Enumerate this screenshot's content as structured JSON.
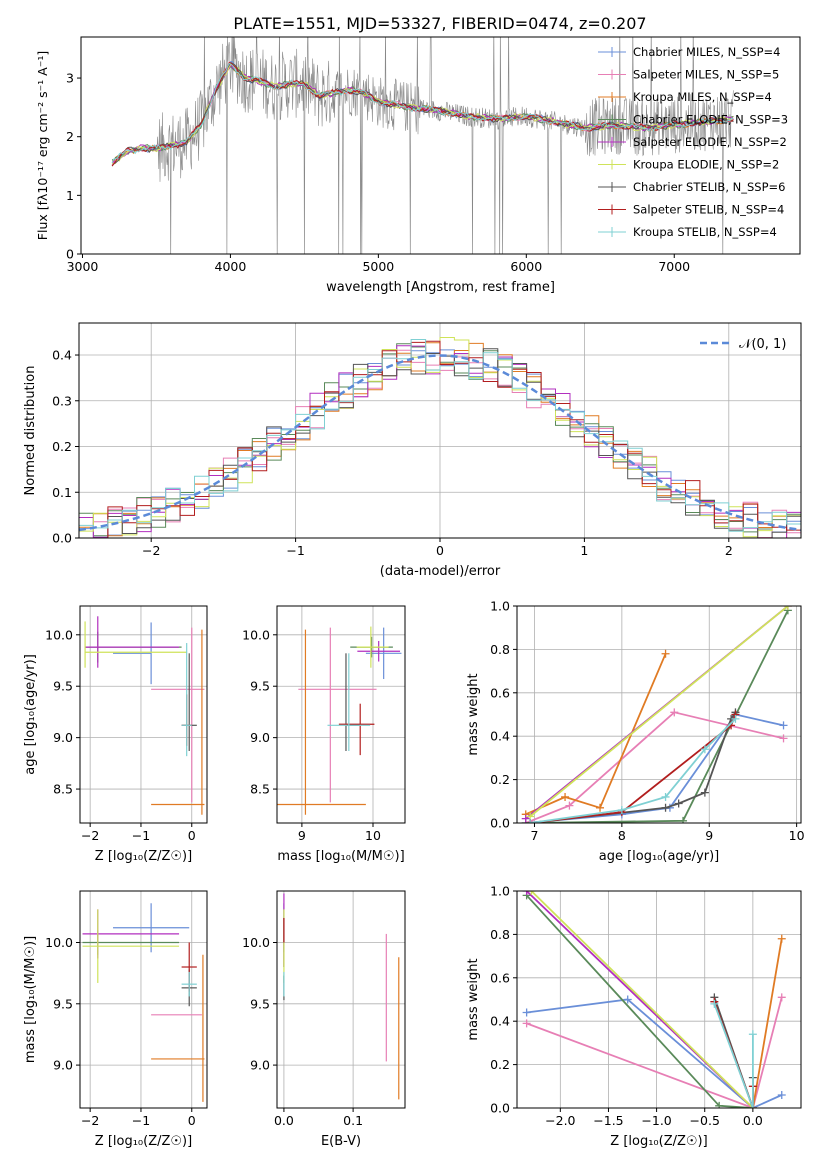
{
  "figure": {
    "title": "PLATE=1551, MJD=53327, FIBERID=0474, z=0.207"
  },
  "colors": {
    "cm": "#6a8fd8",
    "sm": "#e77fb5",
    "km": "#e07b24",
    "ce": "#5a8a5a",
    "se": "#b22fbf",
    "ke": "#cfe35a",
    "cs": "#555555",
    "ss": "#b21e1e",
    "ks": "#7fd0d3",
    "obs": "#888888",
    "norm": "#5b8ad8"
  },
  "chart_data": [
    {
      "id": "spectrum",
      "type": "line",
      "title": "PLATE=1551, MJD=53327, FIBERID=0474, z=0.207",
      "xlabel": "wavelength [Angstrom, rest frame]",
      "ylabel": "Flux [fλ10⁻¹⁷ erg cm⁻² s⁻¹ A⁻¹]",
      "xlim": [
        2990,
        7850
      ],
      "ylim": [
        0,
        3.7
      ],
      "xticks": [
        3000,
        4000,
        5000,
        6000,
        7000
      ],
      "yticks": [
        0,
        1,
        2,
        3
      ],
      "grid": false,
      "legend_position": "top-right",
      "continuum": {
        "x": [
          3200,
          3300,
          3400,
          3500,
          3600,
          3700,
          3800,
          3900,
          4000,
          4100,
          4200,
          4300,
          4400,
          4500,
          4600,
          4700,
          4800,
          4900,
          5000,
          5200,
          5400,
          5600,
          5800,
          6000,
          6200,
          6400,
          6600,
          6800,
          7000,
          7200,
          7400
        ],
        "y": [
          1.55,
          1.75,
          1.8,
          1.8,
          1.85,
          1.9,
          2.2,
          2.8,
          3.25,
          3.0,
          2.95,
          2.85,
          2.9,
          2.9,
          2.7,
          2.75,
          2.8,
          2.75,
          2.6,
          2.5,
          2.45,
          2.35,
          2.3,
          2.35,
          2.25,
          2.15,
          2.2,
          2.15,
          2.2,
          2.25,
          2.3
        ]
      },
      "series": [
        {
          "name": "Chabrier MILES, N_SSP=4",
          "color_key": "cm"
        },
        {
          "name": "Salpeter MILES, N_SSP=5",
          "color_key": "sm"
        },
        {
          "name": "Kroupa MILES, N_SSP=4",
          "color_key": "km"
        },
        {
          "name": "Chabrier ELODIE, N_SSP=3",
          "color_key": "ce"
        },
        {
          "name": "Salpeter ELODIE, N_SSP=2",
          "color_key": "se"
        },
        {
          "name": "Kroupa ELODIE, N_SSP=2",
          "color_key": "ke"
        },
        {
          "name": "Chabrier STELIB, N_SSP=6",
          "color_key": "cs"
        },
        {
          "name": "Salpeter STELIB, N_SSP=4",
          "color_key": "ss"
        },
        {
          "name": "Kroupa STELIB, N_SSP=4",
          "color_key": "ks"
        }
      ]
    },
    {
      "id": "residuals",
      "type": "line",
      "xlabel": "(data-model)/error",
      "ylabel": "Normed distribution",
      "xlim": [
        -2.5,
        2.5
      ],
      "ylim": [
        0,
        0.47
      ],
      "xticks": [
        -2,
        -1,
        0,
        1,
        2
      ],
      "yticks": [
        0.0,
        0.1,
        0.2,
        0.3,
        0.4
      ],
      "grid": true,
      "legend_position": "top-right",
      "legend": "𝒩(0, 1)",
      "bin_width": 0.1
    },
    {
      "id": "age_vs_z",
      "type": "scatter",
      "xlabel": "Z [log₁₀(Z/Z☉)]",
      "ylabel": "age  [log₁₀(age/yr)]",
      "xlim": [
        -2.2,
        0.3
      ],
      "ylim": [
        8.17,
        10.28
      ],
      "xticks": [
        -2,
        -1,
        0
      ],
      "yticks": [
        8.5,
        9.0,
        9.5,
        10.0
      ],
      "grid": true,
      "points": [
        {
          "color_key": "cm",
          "x": -0.8,
          "y": 9.82,
          "xerr": [
            0.75,
            0.0
          ],
          "yerr": [
            0.3,
            0.3
          ]
        },
        {
          "color_key": "sm",
          "x": 0.0,
          "y": 9.47,
          "xerr": [
            0.8,
            0.25
          ],
          "yerr": [
            1.1,
            0.6
          ]
        },
        {
          "color_key": "km",
          "x": 0.2,
          "y": 8.35,
          "xerr": [
            1.0,
            0.05
          ],
          "yerr": [
            0.1,
            1.7
          ]
        },
        {
          "color_key": "ce",
          "x": -1.85,
          "y": 9.88,
          "xerr": [
            0.25,
            1.65
          ],
          "yerr": [
            0.15,
            0.15
          ]
        },
        {
          "color_key": "se",
          "x": -1.85,
          "y": 9.88,
          "xerr": [
            0.25,
            1.6
          ],
          "yerr": [
            0.2,
            0.3
          ]
        },
        {
          "color_key": "ke",
          "x": -2.1,
          "y": 9.83,
          "xerr": [
            0.0,
            2.0
          ],
          "yerr": [
            0.15,
            0.3
          ]
        },
        {
          "color_key": "cs",
          "x": -0.05,
          "y": 9.12,
          "xerr": [
            0.15,
            0.15
          ],
          "yerr": [
            0.25,
            0.7
          ]
        },
        {
          "color_key": "ss",
          "x": -0.1,
          "y": 9.12,
          "xerr": [
            0.1,
            0.1
          ],
          "yerr": [
            0.2,
            0.3
          ]
        },
        {
          "color_key": "ks",
          "x": -0.1,
          "y": 9.12,
          "xerr": [
            0.1,
            0.1
          ],
          "yerr": [
            0.3,
            0.8
          ]
        }
      ]
    },
    {
      "id": "age_vs_mass",
      "type": "scatter",
      "xlabel": "mass [log₁₀(M/M☉)]",
      "ylabel": "",
      "xlim": [
        8.65,
        10.45
      ],
      "ylim": [
        8.17,
        10.28
      ],
      "xticks": [
        9,
        10
      ],
      "yticks": [
        8.5,
        9.0,
        9.5,
        10.0
      ],
      "grid": true,
      "points": [
        {
          "color_key": "cm",
          "x": 10.15,
          "y": 9.82,
          "xerr": [
            0.25,
            0.25
          ],
          "yerr": [
            0.25,
            0.25
          ]
        },
        {
          "color_key": "sm",
          "x": 9.4,
          "y": 9.47,
          "xerr": [
            0.45,
            0.65
          ],
          "yerr": [
            1.1,
            0.6
          ]
        },
        {
          "color_key": "km",
          "x": 9.05,
          "y": 8.35,
          "xerr": [
            0.4,
            0.85
          ],
          "yerr": [
            0.1,
            1.7
          ]
        },
        {
          "color_key": "ce",
          "x": 9.98,
          "y": 9.88,
          "xerr": [
            0.3,
            0.3
          ],
          "yerr": [
            0.1,
            0.1
          ]
        },
        {
          "color_key": "se",
          "x": 10.08,
          "y": 9.84,
          "xerr": [
            0.3,
            0.3
          ],
          "yerr": [
            0.1,
            0.1
          ]
        },
        {
          "color_key": "ke",
          "x": 9.97,
          "y": 9.88,
          "xerr": [
            0.2,
            0.25
          ],
          "yerr": [
            0.2,
            0.2
          ]
        },
        {
          "color_key": "cs",
          "x": 9.62,
          "y": 9.12,
          "xerr": [
            0.0,
            0.2
          ],
          "yerr": [
            0.25,
            0.7
          ]
        },
        {
          "color_key": "ss",
          "x": 9.82,
          "y": 9.13,
          "xerr": [
            0.3,
            0.2
          ],
          "yerr": [
            0.3,
            0.2
          ]
        },
        {
          "color_key": "ks",
          "x": 9.66,
          "y": 9.12,
          "xerr": [
            0.3,
            0.3
          ],
          "yerr": [
            0.25,
            0.7
          ]
        }
      ]
    },
    {
      "id": "weight_vs_age",
      "type": "line",
      "xlabel": "age  [log₁₀(age/yr)]",
      "ylabel": "mass weight",
      "xlim": [
        6.8,
        10.05
      ],
      "ylim": [
        0,
        1.0
      ],
      "xticks": [
        7,
        8,
        9,
        10
      ],
      "yticks": [
        0.0,
        0.2,
        0.4,
        0.6,
        0.8,
        1.0
      ],
      "grid": true,
      "series": [
        {
          "color_key": "cm",
          "x": [
            6.9,
            8.0,
            8.55,
            9.3,
            9.85
          ],
          "y": [
            0.0,
            0.04,
            0.07,
            0.5,
            0.45
          ]
        },
        {
          "color_key": "sm",
          "x": [
            6.9,
            7.4,
            8.6,
            9.85
          ],
          "y": [
            0.0,
            0.08,
            0.51,
            0.39
          ]
        },
        {
          "color_key": "km",
          "x": [
            6.9,
            7.35,
            7.75,
            8.5
          ],
          "y": [
            0.04,
            0.12,
            0.07,
            0.78
          ]
        },
        {
          "color_key": "ce",
          "x": [
            6.9,
            8.7,
            9.9
          ],
          "y": [
            0.0,
            0.01,
            0.98
          ]
        },
        {
          "color_key": "se",
          "x": [
            6.9,
            9.9
          ],
          "y": [
            0.02,
            1.0
          ]
        },
        {
          "color_key": "ke",
          "x": [
            6.95,
            9.9
          ],
          "y": [
            0.03,
            1.0
          ]
        },
        {
          "color_key": "cs",
          "x": [
            6.95,
            8.5,
            8.65,
            8.95,
            9.25,
            9.3
          ],
          "y": [
            0.0,
            0.07,
            0.09,
            0.14,
            0.48,
            0.51
          ]
        },
        {
          "color_key": "ss",
          "x": [
            6.95,
            8.0,
            9.25,
            9.3
          ],
          "y": [
            0.0,
            0.05,
            0.45,
            0.5
          ]
        },
        {
          "color_key": "ks",
          "x": [
            6.95,
            8.0,
            8.5,
            8.95,
            9.3
          ],
          "y": [
            0.0,
            0.06,
            0.12,
            0.34,
            0.48
          ]
        }
      ]
    },
    {
      "id": "mass_vs_z",
      "type": "scatter",
      "xlabel": "Z [log₁₀(Z/Z☉)]",
      "ylabel": "mass [log₁₀(M/M☉)]",
      "xlim": [
        -2.2,
        0.3
      ],
      "ylim": [
        8.65,
        10.42
      ],
      "xticks": [
        -2,
        -1,
        0
      ],
      "yticks": [
        9.0,
        9.5,
        10.0
      ],
      "grid": true,
      "points": [
        {
          "color_key": "cm",
          "x": -0.8,
          "y": 10.12,
          "xerr": [
            0.75,
            0.75
          ],
          "yerr": [
            0.2,
            0.2
          ]
        },
        {
          "color_key": "sm",
          "x": -0.2,
          "y": 9.41,
          "xerr": [
            0.6,
            0.4
          ],
          "yerr": [
            0.0,
            0.0
          ]
        },
        {
          "color_key": "km",
          "x": -0.2,
          "y": 9.05,
          "xerr": [
            0.6,
            0.45
          ],
          "yerr": [
            0.0,
            0.0
          ]
        },
        {
          "color_key": "ce",
          "x": -1.85,
          "y": 10.0,
          "xerr": [
            0.3,
            1.6
          ],
          "yerr": [
            0.1,
            0.1
          ]
        },
        {
          "color_key": "se",
          "x": -1.85,
          "y": 10.07,
          "xerr": [
            0.3,
            1.6
          ],
          "yerr": [
            0.2,
            0.2
          ]
        },
        {
          "color_key": "ke",
          "x": -1.85,
          "y": 9.97,
          "xerr": [
            0.3,
            1.6
          ],
          "yerr": [
            0.3,
            0.3
          ]
        },
        {
          "color_key": "cs",
          "x": -0.05,
          "y": 9.63,
          "xerr": [
            0.15,
            0.15
          ],
          "yerr": [
            0.15,
            0.15
          ]
        },
        {
          "color_key": "ss",
          "x": -0.05,
          "y": 9.8,
          "xerr": [
            0.15,
            0.15
          ],
          "yerr": [
            0.2,
            0.2
          ]
        },
        {
          "color_key": "ks",
          "x": -0.05,
          "y": 9.66,
          "xerr": [
            0.15,
            0.15
          ],
          "yerr": [
            0.1,
            0.1
          ]
        },
        {
          "color_key": "km",
          "x": 0.22,
          "y": 9.3,
          "xerr": [
            0.0,
            0.0
          ],
          "yerr": [
            0.6,
            0.6
          ]
        }
      ]
    },
    {
      "id": "mass_vs_ebv",
      "type": "scatter",
      "xlabel": "E(B-V)",
      "ylabel": "",
      "xlim": [
        -0.01,
        0.175
      ],
      "ylim": [
        8.65,
        10.42
      ],
      "xticks": [
        0.0,
        0.1
      ],
      "yticks": [
        9.0,
        9.5,
        10.0
      ],
      "grid": true,
      "points": [
        {
          "color_key": "cm",
          "x": 0.0,
          "y": 10.12,
          "xerr": [
            0,
            0
          ],
          "yerr": [
            0.2,
            0.2
          ]
        },
        {
          "color_key": "ce",
          "x": 0.0,
          "y": 10.0,
          "xerr": [
            0,
            0
          ],
          "yerr": [
            0.2,
            0.2
          ]
        },
        {
          "color_key": "se",
          "x": 0.0,
          "y": 10.1,
          "xerr": [
            0,
            0
          ],
          "yerr": [
            0.3,
            0.3
          ]
        },
        {
          "color_key": "ke",
          "x": 0.0,
          "y": 9.97,
          "xerr": [
            0,
            0
          ],
          "yerr": [
            0.3,
            0.3
          ]
        },
        {
          "color_key": "cs",
          "x": 0.0,
          "y": 9.63,
          "xerr": [
            0,
            0
          ],
          "yerr": [
            0.1,
            0.1
          ]
        },
        {
          "color_key": "ss",
          "x": 0.0,
          "y": 10.1,
          "xerr": [
            0,
            0
          ],
          "yerr": [
            0.1,
            0.1
          ]
        },
        {
          "color_key": "ks",
          "x": 0.0,
          "y": 9.66,
          "xerr": [
            0,
            0
          ],
          "yerr": [
            0.1,
            0.1
          ]
        },
        {
          "color_key": "sm",
          "x": 0.148,
          "y": 9.55,
          "xerr": [
            0,
            0
          ],
          "yerr": [
            0.52,
            0.52
          ]
        },
        {
          "color_key": "km",
          "x": 0.166,
          "y": 9.3,
          "xerr": [
            0,
            0
          ],
          "yerr": [
            0.58,
            0.58
          ]
        }
      ]
    },
    {
      "id": "weight_vs_z",
      "type": "line",
      "xlabel": "Z [log₁₀(Z/Z☉)]",
      "ylabel": "mass weight",
      "xlim": [
        -2.45,
        0.5
      ],
      "ylim": [
        0,
        1.0
      ],
      "xticks": [
        -2.0,
        -1.5,
        -1.0,
        -0.5,
        0.0
      ],
      "yticks": [
        0.0,
        0.2,
        0.4,
        0.6,
        0.8,
        1.0
      ],
      "grid": true,
      "series": [
        {
          "color_key": "cm",
          "x": [
            -2.35,
            -1.3,
            0.0,
            0.3
          ],
          "y": [
            0.44,
            0.5,
            0.0,
            0.06
          ]
        },
        {
          "color_key": "sm",
          "x": [
            -2.35,
            0.0,
            0.3
          ],
          "y": [
            0.39,
            0.0,
            0.51
          ]
        },
        {
          "color_key": "km",
          "x": [
            0.0,
            0.3
          ],
          "y": [
            0.0,
            0.78
          ]
        },
        {
          "color_key": "ce",
          "x": [
            -2.35,
            -0.35,
            0.0
          ],
          "y": [
            0.98,
            0.01,
            0.0
          ]
        },
        {
          "color_key": "se",
          "x": [
            -2.35,
            0.0
          ],
          "y": [
            1.0,
            0.0
          ]
        },
        {
          "color_key": "ke",
          "x": [
            -2.3,
            0.0
          ],
          "y": [
            1.0,
            0.0
          ]
        },
        {
          "color_key": "cs",
          "x": [
            -0.4,
            0.0,
            0.0
          ],
          "y": [
            0.51,
            0.0,
            0.14
          ]
        },
        {
          "color_key": "ss",
          "x": [
            -0.4,
            0.0,
            0.0
          ],
          "y": [
            0.49,
            0.0,
            0.1
          ]
        },
        {
          "color_key": "ks",
          "x": [
            -0.4,
            0.0,
            0.0
          ],
          "y": [
            0.48,
            0.0,
            0.34
          ]
        }
      ]
    }
  ]
}
